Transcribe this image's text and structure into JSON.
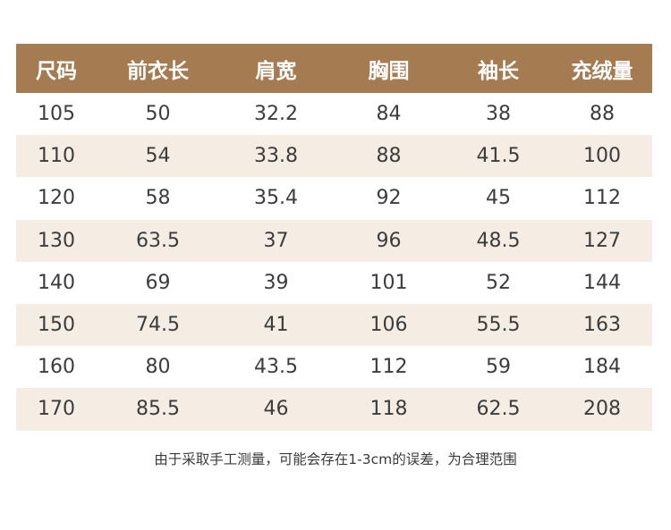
{
  "table": {
    "headers": [
      "尺码",
      "前衣长",
      "肩宽",
      "胸围",
      "袖长",
      "充绒量"
    ],
    "rows": [
      [
        "105",
        "50",
        "32.2",
        "84",
        "38",
        "88"
      ],
      [
        "110",
        "54",
        "33.8",
        "88",
        "41.5",
        "100"
      ],
      [
        "120",
        "58",
        "35.4",
        "92",
        "45",
        "112"
      ],
      [
        "130",
        "63.5",
        "37",
        "96",
        "48.5",
        "127"
      ],
      [
        "140",
        "69",
        "39",
        "101",
        "52",
        "144"
      ],
      [
        "150",
        "74.5",
        "41",
        "106",
        "55.5",
        "163"
      ],
      [
        "160",
        "80",
        "43.5",
        "112",
        "59",
        "184"
      ],
      [
        "170",
        "85.5",
        "46",
        "118",
        "62.5",
        "208"
      ]
    ]
  },
  "footnote": "由于采取手工测量，可能会存在1-3cm的误差，为合理范围",
  "colors": {
    "header_bg": "#a57c52",
    "header_text": "#ffffff",
    "row_alt_bg": "#f5ede4",
    "row_bg": "#ffffff",
    "text": "#3c3c3c"
  }
}
